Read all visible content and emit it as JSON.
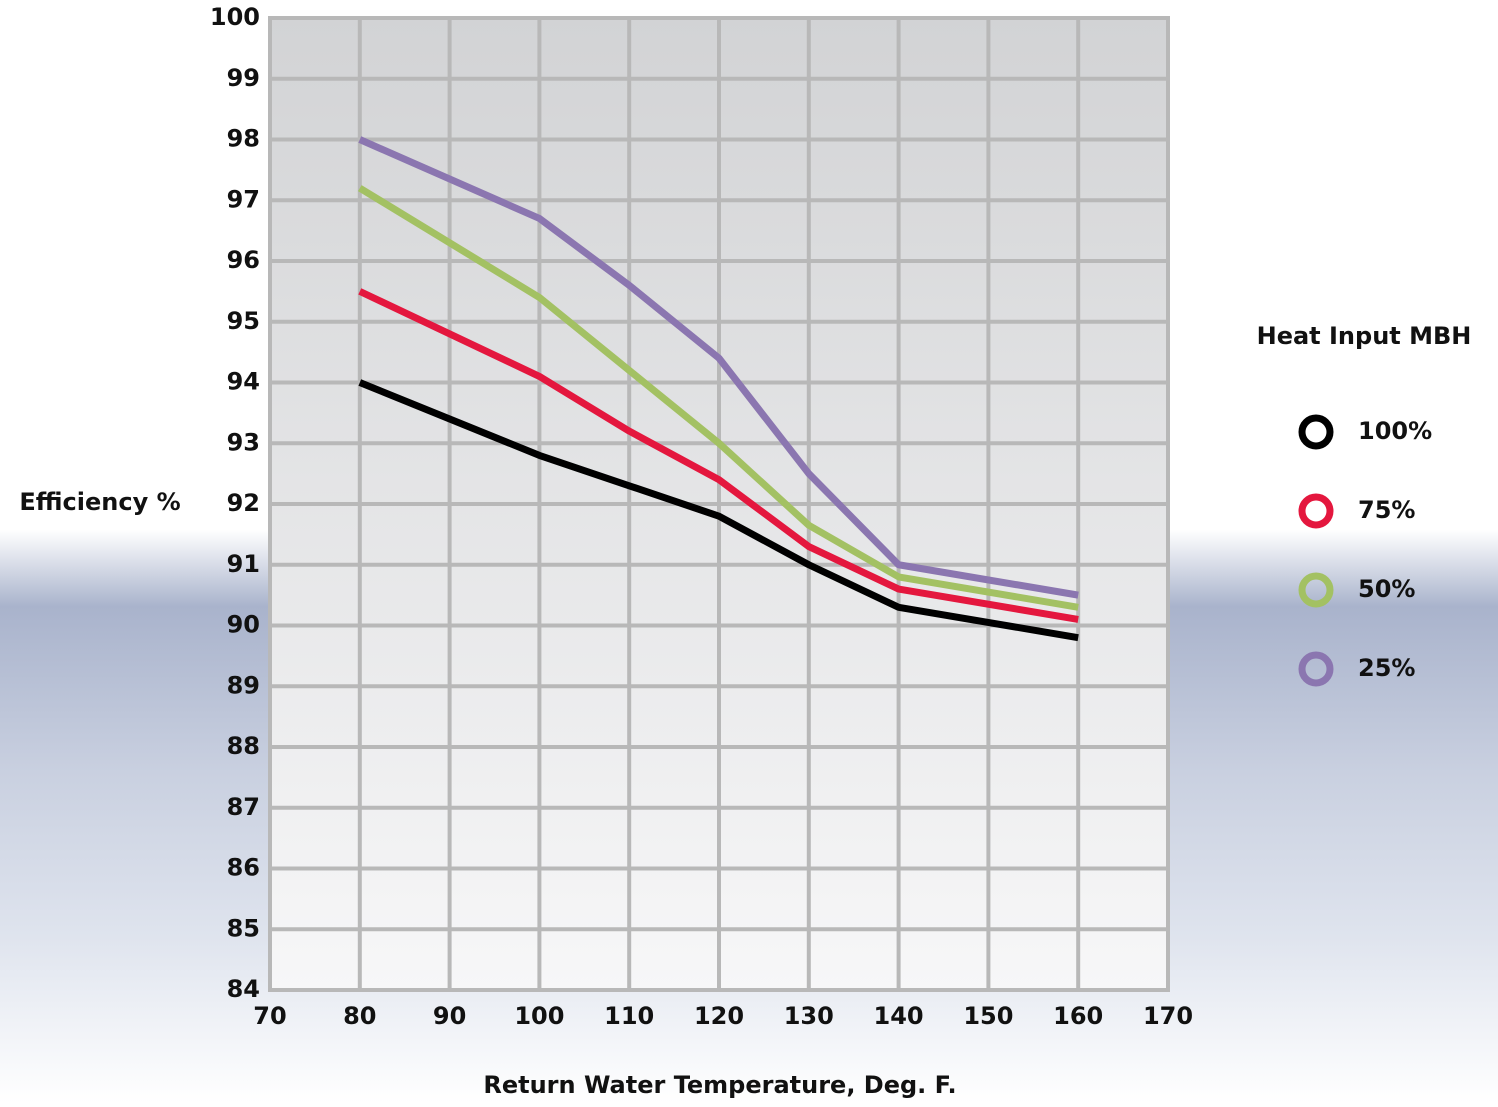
{
  "chart_data": {
    "type": "line",
    "y_label": "Efficiency %",
    "x_label": "Return Water Temperature, Deg. F.",
    "legend_title": "Heat Input MBH",
    "x": [
      80,
      100,
      110,
      120,
      130,
      140,
      160
    ],
    "series": [
      {
        "name": "100%",
        "color": "#000000",
        "values": [
          94.0,
          92.8,
          92.3,
          91.8,
          91.0,
          90.3,
          89.8
        ]
      },
      {
        "name": "75%",
        "color": "#e4173e",
        "values": [
          95.5,
          94.1,
          93.2,
          92.4,
          91.3,
          90.6,
          90.1
        ]
      },
      {
        "name": "50%",
        "color": "#a3c163",
        "values": [
          97.2,
          95.4,
          94.2,
          93.0,
          91.65,
          90.8,
          90.3
        ]
      },
      {
        "name": "25%",
        "color": "#8b76b0",
        "values": [
          98.0,
          96.7,
          95.6,
          94.4,
          92.5,
          91.0,
          90.5
        ]
      }
    ],
    "xlim": [
      70,
      170
    ],
    "xticks": [
      70,
      80,
      90,
      100,
      110,
      120,
      130,
      140,
      150,
      160,
      170
    ],
    "ylim": [
      84,
      100
    ],
    "yticks": [
      84,
      85,
      86,
      87,
      88,
      89,
      90,
      91,
      92,
      93,
      94,
      95,
      96,
      97,
      98,
      99,
      100
    ],
    "grid": true,
    "legend": "right"
  }
}
